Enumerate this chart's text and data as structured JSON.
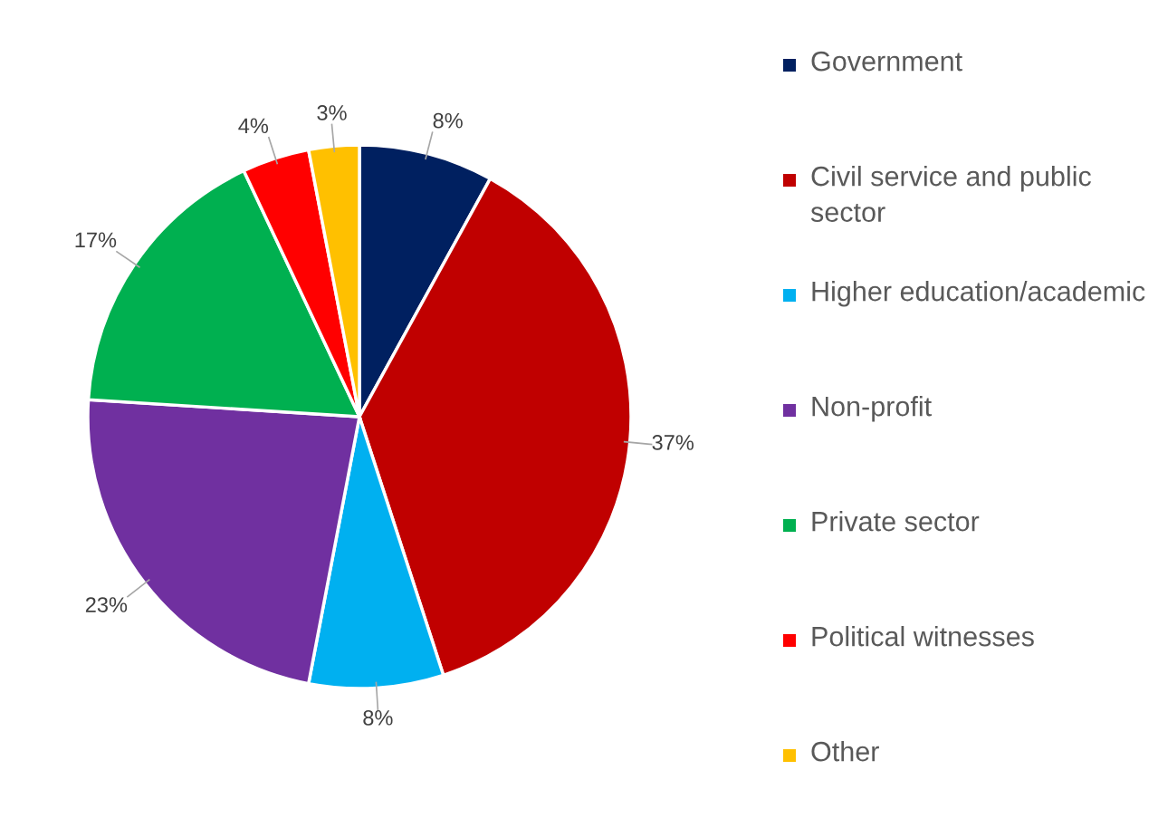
{
  "chart_data": {
    "type": "pie",
    "categories": [
      "Government",
      "Civil service and public sector",
      "Higher education/academic",
      "Non-profit",
      "Private sector",
      "Political witnesses",
      "Other"
    ],
    "values": [
      8,
      37,
      8,
      23,
      17,
      4,
      3
    ],
    "colors": [
      "#002060",
      "#c00000",
      "#00b0f0",
      "#7030a0",
      "#00b050",
      "#ff0000",
      "#ffc000"
    ],
    "value_labels": [
      "8%",
      "37%",
      "8%",
      "23%",
      "17%",
      "4%",
      "3%"
    ],
    "legend": "right"
  }
}
